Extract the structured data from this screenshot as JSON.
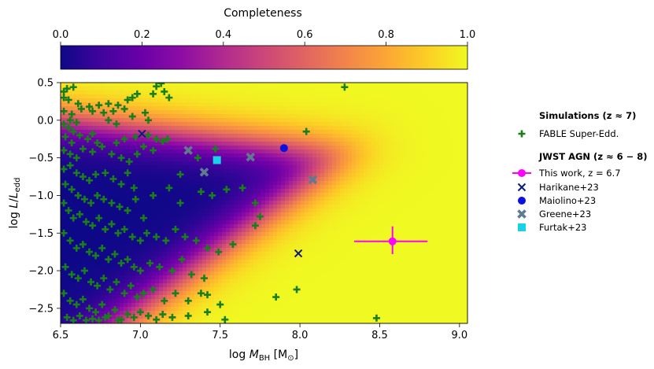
{
  "chart_data": {
    "type": "scatter",
    "xlabel": "log M_BH [M_⊙]",
    "ylabel": "log L/L_edd",
    "xlim": [
      6.5,
      9.05
    ],
    "ylim": [
      -2.7,
      0.5
    ],
    "xticks": [
      6.5,
      7.0,
      7.5,
      8.0,
      8.5,
      9.0
    ],
    "xtick_labels": [
      "6.5",
      "7.0",
      "7.5",
      "8.0",
      "8.5",
      "9.0"
    ],
    "yticks": [
      0.5,
      0.0,
      -0.5,
      -1.0,
      -1.5,
      -2.0,
      -2.5
    ],
    "ytick_labels": [
      "0.5",
      "0.0",
      "−0.5",
      "−1.0",
      "−1.5",
      "−2.0",
      "−2.5"
    ],
    "colorbar": {
      "label": "Completeness",
      "range": [
        0.0,
        1.0
      ],
      "ticks": [
        0.0,
        0.2,
        0.4,
        0.6,
        0.8,
        1.0
      ],
      "tick_labels": [
        "0.0",
        "0.2",
        "0.4",
        "0.6",
        "0.8",
        "1.0"
      ],
      "colormap": "plasma"
    },
    "legend": {
      "placement": "right of plot",
      "group1_title": "Simulations (z ≈ 7)",
      "group2_title": "JWST AGN (z ≈ 6 − 8)",
      "entries": [
        {
          "label": "FABLE Super-Edd.",
          "marker": "plus",
          "color": "#1a7f1a"
        },
        {
          "label": "This work, z = 6.7",
          "marker": "circle-errorbar",
          "color": "#ff00ff"
        },
        {
          "label": "Harikane+23",
          "marker": "x",
          "color": "#0b1c78"
        },
        {
          "label": "Maiolino+23",
          "marker": "circle",
          "color": "#0a10e0"
        },
        {
          "label": "Greene+23",
          "marker": "X",
          "color": "#5f7a8f"
        },
        {
          "label": "Furtak+23",
          "marker": "square",
          "color": "#18d3e6"
        }
      ]
    },
    "series": [
      {
        "name": "FABLE Super-Edd.",
        "marker": "plus",
        "color": "#1a7f1a",
        "points": [
          [
            6.52,
            0.38
          ],
          [
            6.54,
            0.42
          ],
          [
            6.58,
            0.44
          ],
          [
            6.52,
            0.3
          ],
          [
            6.55,
            0.27
          ],
          [
            6.61,
            0.22
          ],
          [
            6.68,
            0.18
          ],
          [
            6.74,
            0.2
          ],
          [
            6.8,
            0.22
          ],
          [
            6.86,
            0.2
          ],
          [
            6.92,
            0.27
          ],
          [
            6.95,
            0.3
          ],
          [
            6.98,
            0.35
          ],
          [
            7.1,
            0.45
          ],
          [
            7.13,
            0.49
          ],
          [
            7.15,
            0.38
          ],
          [
            7.18,
            0.3
          ],
          [
            7.08,
            0.35
          ],
          [
            8.28,
            0.44
          ],
          [
            6.52,
            0.12
          ],
          [
            6.57,
            0.08
          ],
          [
            6.63,
            0.15
          ],
          [
            6.7,
            0.12
          ],
          [
            6.77,
            0.1
          ],
          [
            6.83,
            0.12
          ],
          [
            6.9,
            0.15
          ],
          [
            6.95,
            0.05
          ],
          [
            7.03,
            0.1
          ],
          [
            7.05,
            0.0
          ],
          [
            6.8,
            0.0
          ],
          [
            6.85,
            -0.05
          ],
          [
            6.56,
            0.0
          ],
          [
            6.6,
            -0.03
          ],
          [
            6.52,
            -0.05
          ],
          [
            6.55,
            -0.1
          ],
          [
            6.58,
            -0.15
          ],
          [
            6.62,
            -0.2
          ],
          [
            6.67,
            -0.25
          ],
          [
            6.7,
            -0.18
          ],
          [
            6.73,
            -0.3
          ],
          [
            6.76,
            -0.35
          ],
          [
            6.53,
            -0.22
          ],
          [
            6.57,
            -0.3
          ],
          [
            6.64,
            -0.38
          ],
          [
            6.52,
            -0.4
          ],
          [
            6.56,
            -0.45
          ],
          [
            6.6,
            -0.5
          ],
          [
            6.7,
            -0.42
          ],
          [
            6.82,
            -0.45
          ],
          [
            6.88,
            -0.5
          ],
          [
            6.93,
            -0.55
          ],
          [
            6.85,
            -0.3
          ],
          [
            6.9,
            -0.25
          ],
          [
            6.97,
            -0.22
          ],
          [
            7.05,
            -0.2
          ],
          [
            7.1,
            -0.25
          ],
          [
            7.14,
            -0.28
          ],
          [
            7.17,
            -0.25
          ],
          [
            8.04,
            -0.15
          ],
          [
            7.02,
            -0.35
          ],
          [
            7.08,
            -0.4
          ],
          [
            6.98,
            -0.45
          ],
          [
            7.47,
            -0.38
          ],
          [
            7.36,
            -0.5
          ],
          [
            7.25,
            -0.72
          ],
          [
            6.52,
            -0.65
          ],
          [
            6.56,
            -0.6
          ],
          [
            6.6,
            -0.7
          ],
          [
            6.64,
            -0.75
          ],
          [
            6.68,
            -0.8
          ],
          [
            6.72,
            -0.72
          ],
          [
            6.78,
            -0.7
          ],
          [
            6.83,
            -0.78
          ],
          [
            6.88,
            -0.85
          ],
          [
            6.92,
            -0.7
          ],
          [
            6.96,
            -0.9
          ],
          [
            6.53,
            -0.85
          ],
          [
            6.57,
            -0.92
          ],
          [
            6.61,
            -1.0
          ],
          [
            6.65,
            -1.05
          ],
          [
            6.69,
            -1.1
          ],
          [
            6.73,
            -1.0
          ],
          [
            6.77,
            -1.05
          ],
          [
            6.82,
            -1.1
          ],
          [
            6.87,
            -1.15
          ],
          [
            6.92,
            -1.2
          ],
          [
            6.97,
            -1.05
          ],
          [
            7.02,
            -1.3
          ],
          [
            7.08,
            -1.0
          ],
          [
            7.18,
            -0.9
          ],
          [
            7.25,
            -1.1
          ],
          [
            7.38,
            -0.95
          ],
          [
            7.45,
            -1.0
          ],
          [
            7.54,
            -0.92
          ],
          [
            7.64,
            -0.9
          ],
          [
            7.72,
            -1.1
          ],
          [
            7.75,
            -1.28
          ],
          [
            7.72,
            -1.4
          ],
          [
            6.52,
            -1.1
          ],
          [
            6.55,
            -1.2
          ],
          [
            6.58,
            -1.3
          ],
          [
            6.62,
            -1.25
          ],
          [
            6.66,
            -1.35
          ],
          [
            6.7,
            -1.4
          ],
          [
            6.74,
            -1.3
          ],
          [
            6.78,
            -1.45
          ],
          [
            6.82,
            -1.38
          ],
          [
            6.86,
            -1.5
          ],
          [
            6.9,
            -1.45
          ],
          [
            6.95,
            -1.55
          ],
          [
            7.0,
            -1.6
          ],
          [
            7.04,
            -1.5
          ],
          [
            7.1,
            -1.55
          ],
          [
            7.16,
            -1.6
          ],
          [
            7.22,
            -1.45
          ],
          [
            7.28,
            -1.55
          ],
          [
            7.35,
            -1.6
          ],
          [
            7.42,
            -1.7
          ],
          [
            7.49,
            -1.75
          ],
          [
            7.58,
            -1.65
          ],
          [
            6.52,
            -1.5
          ],
          [
            6.56,
            -1.6
          ],
          [
            6.6,
            -1.7
          ],
          [
            6.64,
            -1.65
          ],
          [
            6.68,
            -1.75
          ],
          [
            6.72,
            -1.8
          ],
          [
            6.76,
            -1.7
          ],
          [
            6.8,
            -1.85
          ],
          [
            6.84,
            -1.78
          ],
          [
            6.88,
            -1.9
          ],
          [
            6.92,
            -1.85
          ],
          [
            6.96,
            -1.95
          ],
          [
            7.0,
            -2.0
          ],
          [
            7.06,
            -1.9
          ],
          [
            7.12,
            -1.95
          ],
          [
            7.2,
            -2.0
          ],
          [
            7.26,
            -1.85
          ],
          [
            7.32,
            -2.05
          ],
          [
            7.4,
            -2.1
          ],
          [
            6.53,
            -1.95
          ],
          [
            6.57,
            -2.05
          ],
          [
            6.61,
            -2.1
          ],
          [
            6.65,
            -2.0
          ],
          [
            6.69,
            -2.15
          ],
          [
            6.73,
            -2.2
          ],
          [
            6.77,
            -2.1
          ],
          [
            6.81,
            -2.25
          ],
          [
            6.85,
            -2.15
          ],
          [
            6.9,
            -2.3
          ],
          [
            6.94,
            -2.2
          ],
          [
            6.98,
            -2.35
          ],
          [
            7.02,
            -2.3
          ],
          [
            7.08,
            -2.25
          ],
          [
            7.15,
            -2.4
          ],
          [
            7.22,
            -2.3
          ],
          [
            7.3,
            -2.4
          ],
          [
            7.38,
            -2.3
          ],
          [
            7.42,
            -2.32
          ],
          [
            7.5,
            -2.45
          ],
          [
            7.85,
            -2.35
          ],
          [
            7.98,
            -2.25
          ],
          [
            6.52,
            -2.3
          ],
          [
            6.56,
            -2.4
          ],
          [
            6.6,
            -2.45
          ],
          [
            6.64,
            -2.38
          ],
          [
            6.68,
            -2.5
          ],
          [
            6.72,
            -2.55
          ],
          [
            6.76,
            -2.45
          ],
          [
            6.8,
            -2.6
          ],
          [
            6.84,
            -2.52
          ],
          [
            6.88,
            -2.65
          ],
          [
            6.92,
            -2.58
          ],
          [
            6.96,
            -2.62
          ],
          [
            7.0,
            -2.55
          ],
          [
            7.05,
            -2.6
          ],
          [
            7.1,
            -2.65
          ],
          [
            7.2,
            -2.62
          ],
          [
            7.3,
            -2.6
          ],
          [
            7.42,
            -2.55
          ],
          [
            7.53,
            -2.65
          ],
          [
            8.48,
            -2.63
          ],
          [
            6.54,
            -2.62
          ],
          [
            6.58,
            -2.66
          ],
          [
            6.62,
            -2.6
          ],
          [
            6.66,
            -2.66
          ],
          [
            6.7,
            -2.64
          ],
          [
            6.74,
            -2.66
          ],
          [
            6.78,
            -2.62
          ],
          [
            6.86,
            -2.66
          ],
          [
            7.14,
            -2.58
          ]
        ]
      },
      {
        "name": "This work, z = 6.7",
        "marker": "circle-errorbar",
        "color": "#ff00ff",
        "points": [
          [
            8.58,
            -1.61
          ]
        ],
        "xerr": [
          [
            0.24,
            0.22
          ]
        ],
        "yerr": [
          [
            0.17,
            0.2
          ]
        ]
      },
      {
        "name": "Harikane+23",
        "marker": "x",
        "color": "#0b1c78",
        "points": [
          [
            7.01,
            -0.18
          ],
          [
            7.99,
            -1.77
          ]
        ]
      },
      {
        "name": "Maiolino+23",
        "marker": "circle",
        "color": "#0a10e0",
        "points": [
          [
            7.9,
            -0.37
          ]
        ]
      },
      {
        "name": "Greene+23",
        "marker": "X",
        "color": "#5f7a8f",
        "points": [
          [
            7.3,
            -0.4
          ],
          [
            7.4,
            -0.69
          ],
          [
            7.69,
            -0.49
          ],
          [
            8.08,
            -0.79
          ]
        ]
      },
      {
        "name": "Furtak+23",
        "marker": "square",
        "color": "#18d3e6",
        "points": [
          [
            7.48,
            -0.53
          ]
        ]
      }
    ]
  }
}
